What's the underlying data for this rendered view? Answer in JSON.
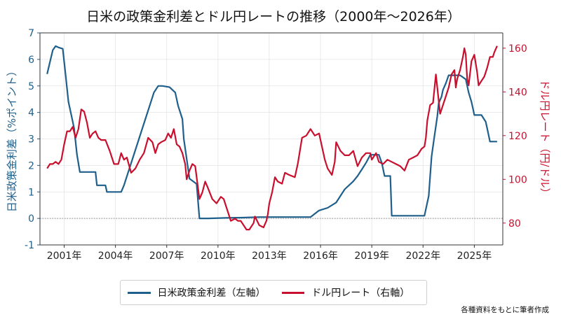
{
  "chart_data": {
    "type": "line",
    "title": "日米の政策金利差とドル円レートの推移（2000年〜2026年）",
    "ylabel_left": "日米政策金利差（%ポイント）",
    "ylabel_right": "ドル円レート（円/ドル）",
    "ylim_left": [
      -1,
      7
    ],
    "ylim_right": [
      70,
      167
    ],
    "yticks_left": [
      "-1",
      "0",
      "1",
      "2",
      "3",
      "4",
      "5",
      "6",
      "7"
    ],
    "yticks_right": [
      "80",
      "100",
      "120",
      "140",
      "160"
    ],
    "xticks": [
      "2001年",
      "2004年",
      "2007年",
      "2010年",
      "2013年",
      "2016年",
      "2019年",
      "2022年",
      "2025年"
    ],
    "x_range": [
      "1999-08",
      "2026-09"
    ],
    "grid": true,
    "zero_line": true,
    "legend_placement": "bottom-center",
    "series": [
      {
        "name": "日米政策金利差（左軸）",
        "axis": "left",
        "color": "#1f5f8b",
        "points": [
          [
            "2000-01",
            5.45
          ],
          [
            "2000-03",
            5.9
          ],
          [
            "2000-05",
            6.35
          ],
          [
            "2000-07",
            6.5
          ],
          [
            "2000-09",
            6.45
          ],
          [
            "2000-12",
            6.4
          ],
          [
            "2001-02",
            5.4
          ],
          [
            "2001-04",
            4.4
          ],
          [
            "2001-06",
            3.9
          ],
          [
            "2001-08",
            3.4
          ],
          [
            "2001-10",
            2.4
          ],
          [
            "2001-12",
            1.75
          ],
          [
            "2002-06",
            1.75
          ],
          [
            "2002-11",
            1.75
          ],
          [
            "2002-12",
            1.25
          ],
          [
            "2003-06",
            1.25
          ],
          [
            "2003-07",
            1.0
          ],
          [
            "2004-05",
            1.0
          ],
          [
            "2004-07",
            1.25
          ],
          [
            "2004-10",
            1.75
          ],
          [
            "2005-01",
            2.25
          ],
          [
            "2005-04",
            2.75
          ],
          [
            "2005-07",
            3.25
          ],
          [
            "2005-10",
            3.75
          ],
          [
            "2006-01",
            4.25
          ],
          [
            "2006-04",
            4.75
          ],
          [
            "2006-07",
            5.0
          ],
          [
            "2006-10",
            5.0
          ],
          [
            "2007-03",
            4.95
          ],
          [
            "2007-07",
            4.75
          ],
          [
            "2007-09",
            4.25
          ],
          [
            "2007-12",
            3.75
          ],
          [
            "2008-01",
            3.0
          ],
          [
            "2008-03",
            2.25
          ],
          [
            "2008-05",
            1.5
          ],
          [
            "2008-10",
            1.3
          ],
          [
            "2008-12",
            0.0
          ],
          [
            "2009-06",
            0.0
          ],
          [
            "2010-06",
            0.02
          ],
          [
            "2011-06",
            0.03
          ],
          [
            "2012-06",
            0.05
          ],
          [
            "2013-06",
            0.05
          ],
          [
            "2014-06",
            0.05
          ],
          [
            "2015-06",
            0.05
          ],
          [
            "2015-12",
            0.3
          ],
          [
            "2016-06",
            0.4
          ],
          [
            "2016-12",
            0.6
          ],
          [
            "2017-03",
            0.85
          ],
          [
            "2017-06",
            1.1
          ],
          [
            "2017-12",
            1.4
          ],
          [
            "2018-03",
            1.6
          ],
          [
            "2018-06",
            1.85
          ],
          [
            "2018-09",
            2.1
          ],
          [
            "2018-12",
            2.4
          ],
          [
            "2019-06",
            2.4
          ],
          [
            "2019-08",
            2.1
          ],
          [
            "2019-10",
            1.6
          ],
          [
            "2020-02",
            1.6
          ],
          [
            "2020-03",
            0.1
          ],
          [
            "2021-06",
            0.1
          ],
          [
            "2022-02",
            0.1
          ],
          [
            "2022-03",
            0.35
          ],
          [
            "2022-05",
            0.85
          ],
          [
            "2022-06",
            1.6
          ],
          [
            "2022-07",
            2.35
          ],
          [
            "2022-09",
            3.1
          ],
          [
            "2022-11",
            3.85
          ],
          [
            "2022-12",
            4.35
          ],
          [
            "2023-02",
            4.6
          ],
          [
            "2023-03",
            4.85
          ],
          [
            "2023-05",
            5.1
          ],
          [
            "2023-07",
            5.4
          ],
          [
            "2024-03",
            5.4
          ],
          [
            "2024-07",
            5.25
          ],
          [
            "2024-09",
            4.75
          ],
          [
            "2024-11",
            4.4
          ],
          [
            "2024-12",
            4.15
          ],
          [
            "2025-01",
            3.9
          ],
          [
            "2025-06",
            3.9
          ],
          [
            "2025-09",
            3.65
          ],
          [
            "2025-10",
            3.4
          ],
          [
            "2025-12",
            2.9
          ],
          [
            "2026-05",
            2.9
          ]
        ]
      },
      {
        "name": "ドル円レート（右軸）",
        "axis": "right",
        "color": "#c8102e",
        "points": [
          [
            "2000-01",
            105
          ],
          [
            "2000-03",
            107
          ],
          [
            "2000-05",
            107
          ],
          [
            "2000-07",
            108
          ],
          [
            "2000-09",
            107
          ],
          [
            "2000-11",
            109
          ],
          [
            "2001-01",
            116
          ],
          [
            "2001-03",
            122
          ],
          [
            "2001-05",
            122
          ],
          [
            "2001-07",
            124
          ],
          [
            "2001-09",
            119
          ],
          [
            "2001-11",
            123
          ],
          [
            "2002-01",
            132
          ],
          [
            "2002-03",
            131
          ],
          [
            "2002-05",
            126
          ],
          [
            "2002-07",
            119
          ],
          [
            "2002-09",
            121
          ],
          [
            "2002-11",
            122
          ],
          [
            "2003-01",
            119
          ],
          [
            "2003-03",
            118
          ],
          [
            "2003-06",
            118
          ],
          [
            "2003-09",
            113
          ],
          [
            "2003-12",
            107
          ],
          [
            "2004-03",
            107
          ],
          [
            "2004-05",
            112
          ],
          [
            "2004-07",
            109
          ],
          [
            "2004-09",
            110
          ],
          [
            "2004-12",
            103
          ],
          [
            "2005-03",
            105
          ],
          [
            "2005-06",
            109
          ],
          [
            "2005-09",
            112
          ],
          [
            "2005-12",
            119
          ],
          [
            "2006-03",
            117
          ],
          [
            "2006-05",
            112
          ],
          [
            "2006-07",
            116
          ],
          [
            "2006-09",
            117
          ],
          [
            "2006-12",
            118
          ],
          [
            "2007-02",
            121
          ],
          [
            "2007-04",
            119
          ],
          [
            "2007-06",
            123
          ],
          [
            "2007-08",
            116
          ],
          [
            "2007-10",
            115
          ],
          [
            "2007-12",
            112
          ],
          [
            "2008-02",
            107
          ],
          [
            "2008-03",
            100
          ],
          [
            "2008-05",
            104
          ],
          [
            "2008-07",
            107
          ],
          [
            "2008-09",
            106
          ],
          [
            "2008-11",
            96
          ],
          [
            "2008-12",
            91
          ],
          [
            "2009-02",
            94
          ],
          [
            "2009-04",
            99
          ],
          [
            "2009-06",
            96
          ],
          [
            "2009-09",
            91
          ],
          [
            "2009-12",
            89
          ],
          [
            "2010-03",
            92
          ],
          [
            "2010-05",
            91
          ],
          [
            "2010-08",
            85
          ],
          [
            "2010-10",
            81
          ],
          [
            "2011-01",
            82
          ],
          [
            "2011-03",
            81
          ],
          [
            "2011-05",
            81
          ],
          [
            "2011-07",
            79
          ],
          [
            "2011-09",
            77
          ],
          [
            "2011-11",
            77
          ],
          [
            "2012-02",
            80
          ],
          [
            "2012-03",
            83
          ],
          [
            "2012-06",
            79
          ],
          [
            "2012-09",
            78
          ],
          [
            "2012-11",
            81
          ],
          [
            "2012-12",
            84
          ],
          [
            "2013-01",
            89
          ],
          [
            "2013-03",
            94
          ],
          [
            "2013-05",
            101
          ],
          [
            "2013-07",
            99
          ],
          [
            "2013-10",
            98
          ],
          [
            "2013-12",
            103
          ],
          [
            "2014-03",
            102
          ],
          [
            "2014-07",
            101
          ],
          [
            "2014-09",
            107
          ],
          [
            "2014-12",
            119
          ],
          [
            "2015-03",
            120
          ],
          [
            "2015-06",
            123
          ],
          [
            "2015-09",
            120
          ],
          [
            "2015-12",
            121
          ],
          [
            "2016-02",
            115
          ],
          [
            "2016-04",
            109
          ],
          [
            "2016-06",
            105
          ],
          [
            "2016-09",
            102
          ],
          [
            "2016-11",
            108
          ],
          [
            "2016-12",
            117
          ],
          [
            "2017-03",
            113
          ],
          [
            "2017-06",
            111
          ],
          [
            "2017-09",
            111
          ],
          [
            "2017-12",
            113
          ],
          [
            "2018-03",
            106
          ],
          [
            "2018-06",
            110
          ],
          [
            "2018-09",
            112
          ],
          [
            "2018-12",
            112
          ],
          [
            "2019-01",
            109
          ],
          [
            "2019-04",
            112
          ],
          [
            "2019-06",
            108
          ],
          [
            "2019-09",
            107
          ],
          [
            "2019-12",
            109
          ],
          [
            "2020-03",
            108
          ],
          [
            "2020-06",
            107
          ],
          [
            "2020-09",
            106
          ],
          [
            "2020-12",
            104
          ],
          [
            "2021-03",
            109
          ],
          [
            "2021-06",
            110
          ],
          [
            "2021-09",
            111
          ],
          [
            "2021-12",
            114
          ],
          [
            "2022-02",
            115
          ],
          [
            "2022-03",
            119
          ],
          [
            "2022-04",
            127
          ],
          [
            "2022-06",
            134
          ],
          [
            "2022-08",
            135
          ],
          [
            "2022-10",
            148
          ],
          [
            "2022-11",
            142
          ],
          [
            "2023-01",
            130
          ],
          [
            "2023-03",
            134
          ],
          [
            "2023-05",
            138
          ],
          [
            "2023-07",
            142
          ],
          [
            "2023-09",
            148
          ],
          [
            "2023-11",
            150
          ],
          [
            "2023-12",
            142
          ],
          [
            "2024-01",
            146
          ],
          [
            "2024-03",
            150
          ],
          [
            "2024-05",
            156
          ],
          [
            "2024-06",
            160
          ],
          [
            "2024-07",
            157
          ],
          [
            "2024-08",
            146
          ],
          [
            "2024-09",
            143
          ],
          [
            "2024-11",
            154
          ],
          [
            "2025-01",
            157
          ],
          [
            "2025-03",
            149
          ],
          [
            "2025-04",
            143
          ],
          [
            "2025-06",
            145
          ],
          [
            "2025-08",
            147
          ],
          [
            "2025-10",
            151
          ],
          [
            "2025-12",
            156
          ],
          [
            "2026-02",
            156
          ],
          [
            "2026-03",
            158
          ],
          [
            "2026-05",
            161
          ]
        ]
      }
    ]
  },
  "legend": {
    "left_label": "日米政策金利差（左軸）",
    "right_label": "ドル円レート（右軸）"
  },
  "source_note": "各種資料をもとに筆者作成"
}
